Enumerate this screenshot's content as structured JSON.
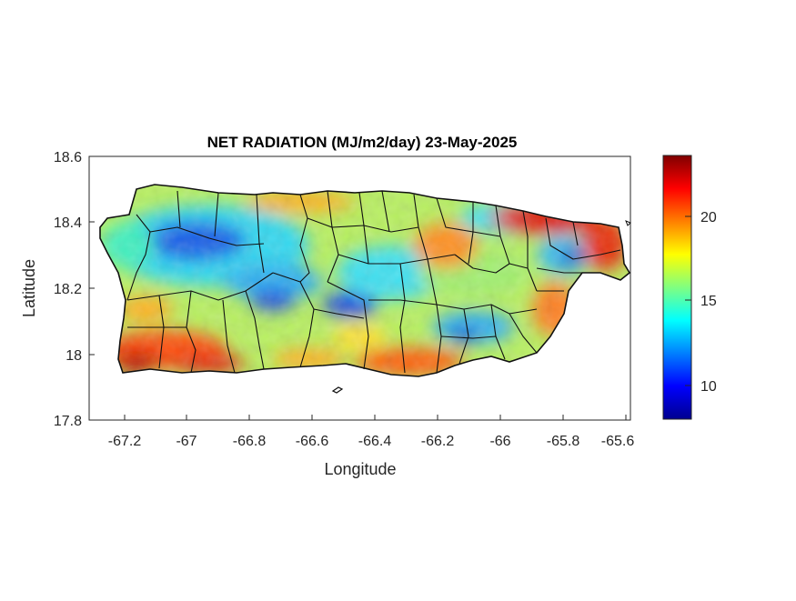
{
  "title": "NET RADIATION (MJ/m2/day) 23-May-2025",
  "xlabel": "Longitude",
  "ylabel": "Latitude",
  "x_ticks": [
    "-67.2",
    "-67",
    "-66.8",
    "-66.6",
    "-66.4",
    "-66.2",
    "-66",
    "-65.8",
    "-65.6"
  ],
  "y_ticks": [
    "18.6",
    "18.4",
    "18.2",
    "18",
    "17.8"
  ],
  "colorbar_ticks": [
    "20",
    "15",
    "10"
  ],
  "colorbar": {
    "min": 8,
    "max": 23.5,
    "colormap": "jet"
  },
  "map_extent": {
    "lon": [
      -67.3,
      -65.58
    ],
    "lat": [
      17.8,
      18.6
    ]
  }
}
